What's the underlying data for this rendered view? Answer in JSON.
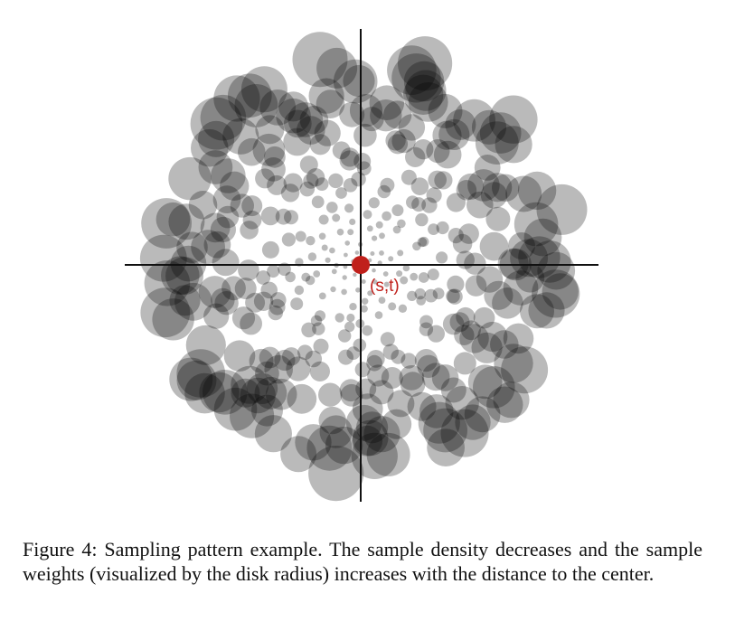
{
  "figure": {
    "point_label": "(s,t)"
  },
  "caption": "Figure 4: Sampling pattern example. The sample density decreases and the sample weights (visualized by the disk radius) increases with the distance to the center."
}
